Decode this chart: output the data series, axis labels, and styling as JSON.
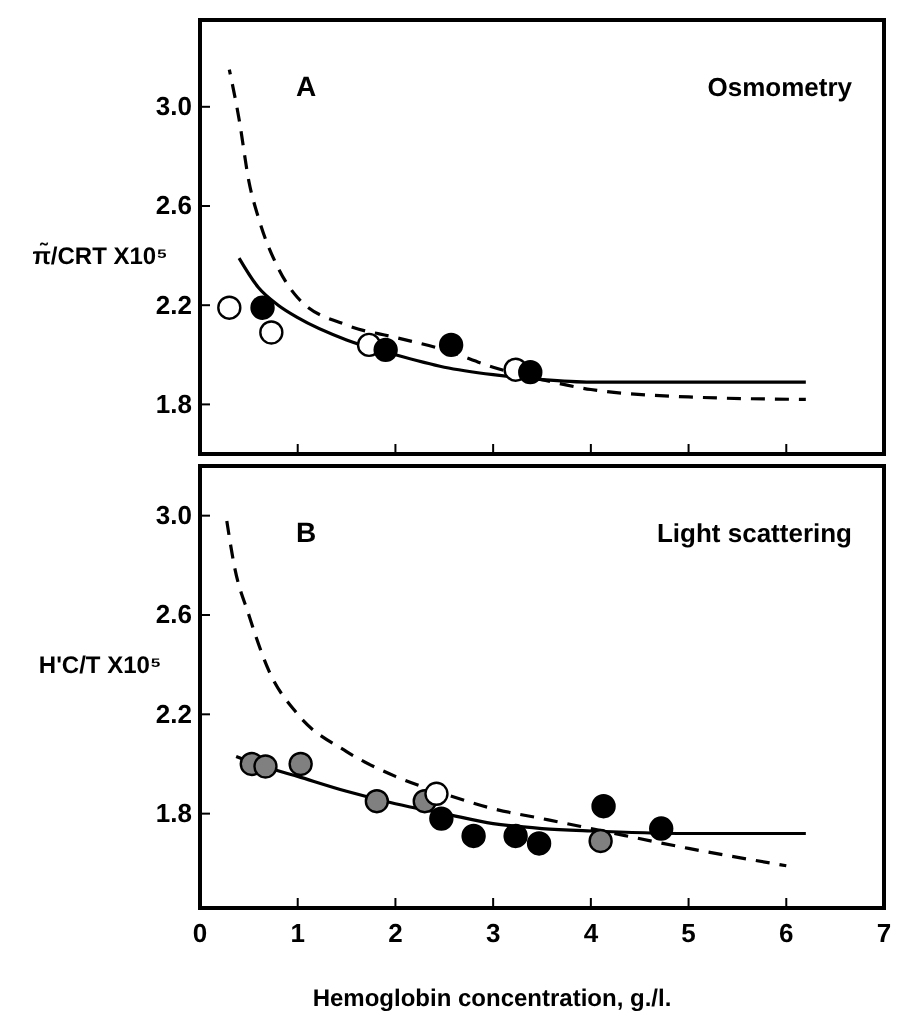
{
  "chart_data": [
    {
      "type": "scatter",
      "ylabel": "π̃/CRT X10⁵",
      "annotations": [
        "A",
        "Osmometry"
      ],
      "xlim": [
        0,
        7
      ],
      "xticks": [
        0,
        1,
        2,
        3,
        4,
        5,
        6,
        7
      ],
      "ylim": [
        1.6,
        3.35
      ],
      "yticks": [
        1.8,
        2.2,
        2.6,
        {
          "value": 3,
          "label": "3.0"
        }
      ],
      "tick_labels": "y",
      "series": [
        {
          "type": "line",
          "line_style": "solid",
          "color": "#000000",
          "x": [
            0.4,
            0.6,
            0.8,
            1,
            1.5,
            2,
            2.5,
            3,
            3.5,
            4,
            5,
            6.2
          ],
          "values": [
            2.39,
            2.27,
            2.2,
            2.15,
            2.06,
            2.0,
            1.95,
            1.92,
            1.9,
            1.89,
            1.89,
            1.89
          ]
        },
        {
          "type": "line",
          "line_style": "dashed",
          "color": "#000000",
          "x": [
            0.3,
            0.4,
            0.5,
            0.6,
            0.8,
            1,
            1.5,
            2,
            2.5,
            3,
            3.5,
            4,
            5,
            6.2
          ],
          "values": [
            3.15,
            2.95,
            2.7,
            2.55,
            2.35,
            2.23,
            2.12,
            2.07,
            2.02,
            1.95,
            1.9,
            1.86,
            1.83,
            1.82
          ]
        },
        {
          "marker": "circle",
          "color": "#ffffff",
          "x": [
            0.3,
            0.73,
            1.73,
            3.23
          ],
          "values": [
            2.19,
            2.09,
            2.04,
            1.94
          ]
        },
        {
          "marker": "circle",
          "color": "#000000",
          "x": [
            0.64,
            1.9,
            2.57,
            3.38
          ],
          "values": [
            2.19,
            2.02,
            2.04,
            1.93
          ]
        }
      ]
    },
    {
      "type": "scatter",
      "ylabel": "H'C/T X10⁵",
      "xlabel": "Hemoglobin concentration, g./l.",
      "annotations": [
        "B",
        "Light scattering"
      ],
      "xlim": [
        0,
        7
      ],
      "xticks": [
        0,
        1,
        2,
        3,
        4,
        5,
        6,
        7
      ],
      "ylim": [
        1.42,
        3.2
      ],
      "yticks": [
        1.8,
        2.2,
        2.6,
        {
          "value": 3,
          "label": "3.0"
        }
      ],
      "series": [
        {
          "type": "line",
          "line_style": "solid",
          "color": "#000000",
          "x": [
            0.37,
            0.5,
            1,
            1.5,
            2,
            2.5,
            3,
            3.5,
            4,
            5,
            6.2
          ],
          "values": [
            2.03,
            2.01,
            1.95,
            1.89,
            1.84,
            1.8,
            1.76,
            1.74,
            1.73,
            1.72,
            1.72
          ]
        },
        {
          "type": "line",
          "line_style": "dashed",
          "color": "#000000",
          "x": [
            0.27,
            0.35,
            0.5,
            0.7,
            1,
            1.5,
            2,
            2.5,
            3,
            3.5,
            4,
            5,
            6
          ],
          "values": [
            2.99,
            2.8,
            2.6,
            2.38,
            2.2,
            2.05,
            1.95,
            1.88,
            1.82,
            1.78,
            1.74,
            1.66,
            1.59
          ]
        },
        {
          "marker": "circle",
          "color": "#808080",
          "x": [
            0.53,
            0.67,
            1.03,
            1.81,
            2.3,
            4.1
          ],
          "values": [
            2.0,
            1.99,
            2.0,
            1.85,
            1.85,
            1.69
          ]
        },
        {
          "marker": "circle",
          "color": "#ffffff",
          "x": [
            2.42
          ],
          "values": [
            1.88
          ]
        },
        {
          "marker": "circle",
          "color": "#000000",
          "x": [
            2.47,
            2.8,
            3.23,
            3.47,
            4.13,
            4.72
          ],
          "values": [
            1.78,
            1.71,
            1.71,
            1.68,
            1.83,
            1.74
          ]
        }
      ]
    }
  ]
}
